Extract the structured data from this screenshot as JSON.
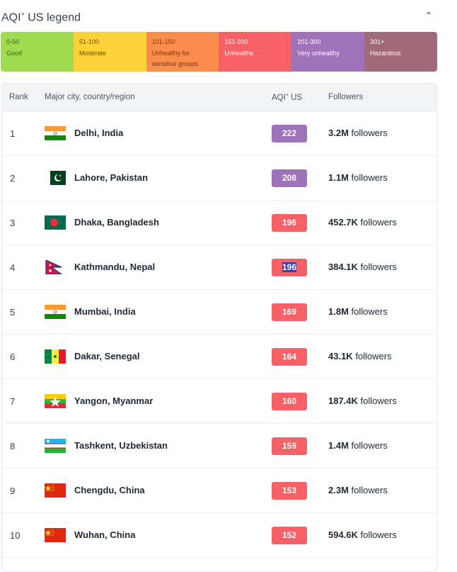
{
  "legend": {
    "title": "AQI",
    "title_sup": "+",
    "title_rest": " US legend",
    "collapse_icon": "chevron-up-icon",
    "segments": [
      {
        "range": "0-50",
        "label": "Good",
        "color": "#a0da4f",
        "text": "#3f5f1a"
      },
      {
        "range": "51-100",
        "label": "Moderate",
        "color": "#fcd23b",
        "text": "#6b5300"
      },
      {
        "range": "101-150",
        "label": "Unhealthy for sensitive groups",
        "color": "#fb8d4c",
        "text": "#7a3410"
      },
      {
        "range": "151-200",
        "label": "Unhealthy",
        "color": "#f76066",
        "text": "#ffffff"
      },
      {
        "range": "201-300",
        "label": "Very unhealthy",
        "color": "#a072b9",
        "text": "#ffffff"
      },
      {
        "range": "301+",
        "label": "Hazardous",
        "color": "#a16a7a",
        "text": "#ffffff"
      }
    ]
  },
  "table": {
    "headers": {
      "rank": "Rank",
      "city": "Major city, country/region",
      "aqi": "AQI",
      "aqi_sup": "+",
      "aqi_rest": " US",
      "followers": "Followers"
    },
    "followers_suffix": " followers",
    "rows": [
      {
        "rank": "1",
        "city": "Delhi, India",
        "flag": "india",
        "aqi": "222",
        "color": "#a072b9",
        "followers": "3.2M"
      },
      {
        "rank": "2",
        "city": "Lahore, Pakistan",
        "flag": "pakistan",
        "aqi": "208",
        "color": "#a072b9",
        "followers": "1.1M"
      },
      {
        "rank": "3",
        "city": "Dhaka, Bangladesh",
        "flag": "bangladesh",
        "aqi": "196",
        "color": "#f76066",
        "followers": "452.7K"
      },
      {
        "rank": "4",
        "city": "Kathmandu, Nepal",
        "flag": "nepal",
        "aqi": "196",
        "color": "#f76066",
        "followers": "384.1K",
        "selected": true
      },
      {
        "rank": "5",
        "city": "Mumbai, India",
        "flag": "india",
        "aqi": "169",
        "color": "#f76066",
        "followers": "1.8M"
      },
      {
        "rank": "6",
        "city": "Dakar, Senegal",
        "flag": "senegal",
        "aqi": "164",
        "color": "#f76066",
        "followers": "43.1K"
      },
      {
        "rank": "7",
        "city": "Yangon, Myanmar",
        "flag": "myanmar",
        "aqi": "160",
        "color": "#f76066",
        "followers": "187.4K"
      },
      {
        "rank": "8",
        "city": "Tashkent, Uzbekistan",
        "flag": "uzbekistan",
        "aqi": "159",
        "color": "#f76066",
        "followers": "1.4M"
      },
      {
        "rank": "9",
        "city": "Chengdu, China",
        "flag": "china",
        "aqi": "153",
        "color": "#f76066",
        "followers": "2.3M"
      },
      {
        "rank": "10",
        "city": "Wuhan, China",
        "flag": "china",
        "aqi": "152",
        "color": "#f76066",
        "followers": "594.6K"
      }
    ]
  }
}
